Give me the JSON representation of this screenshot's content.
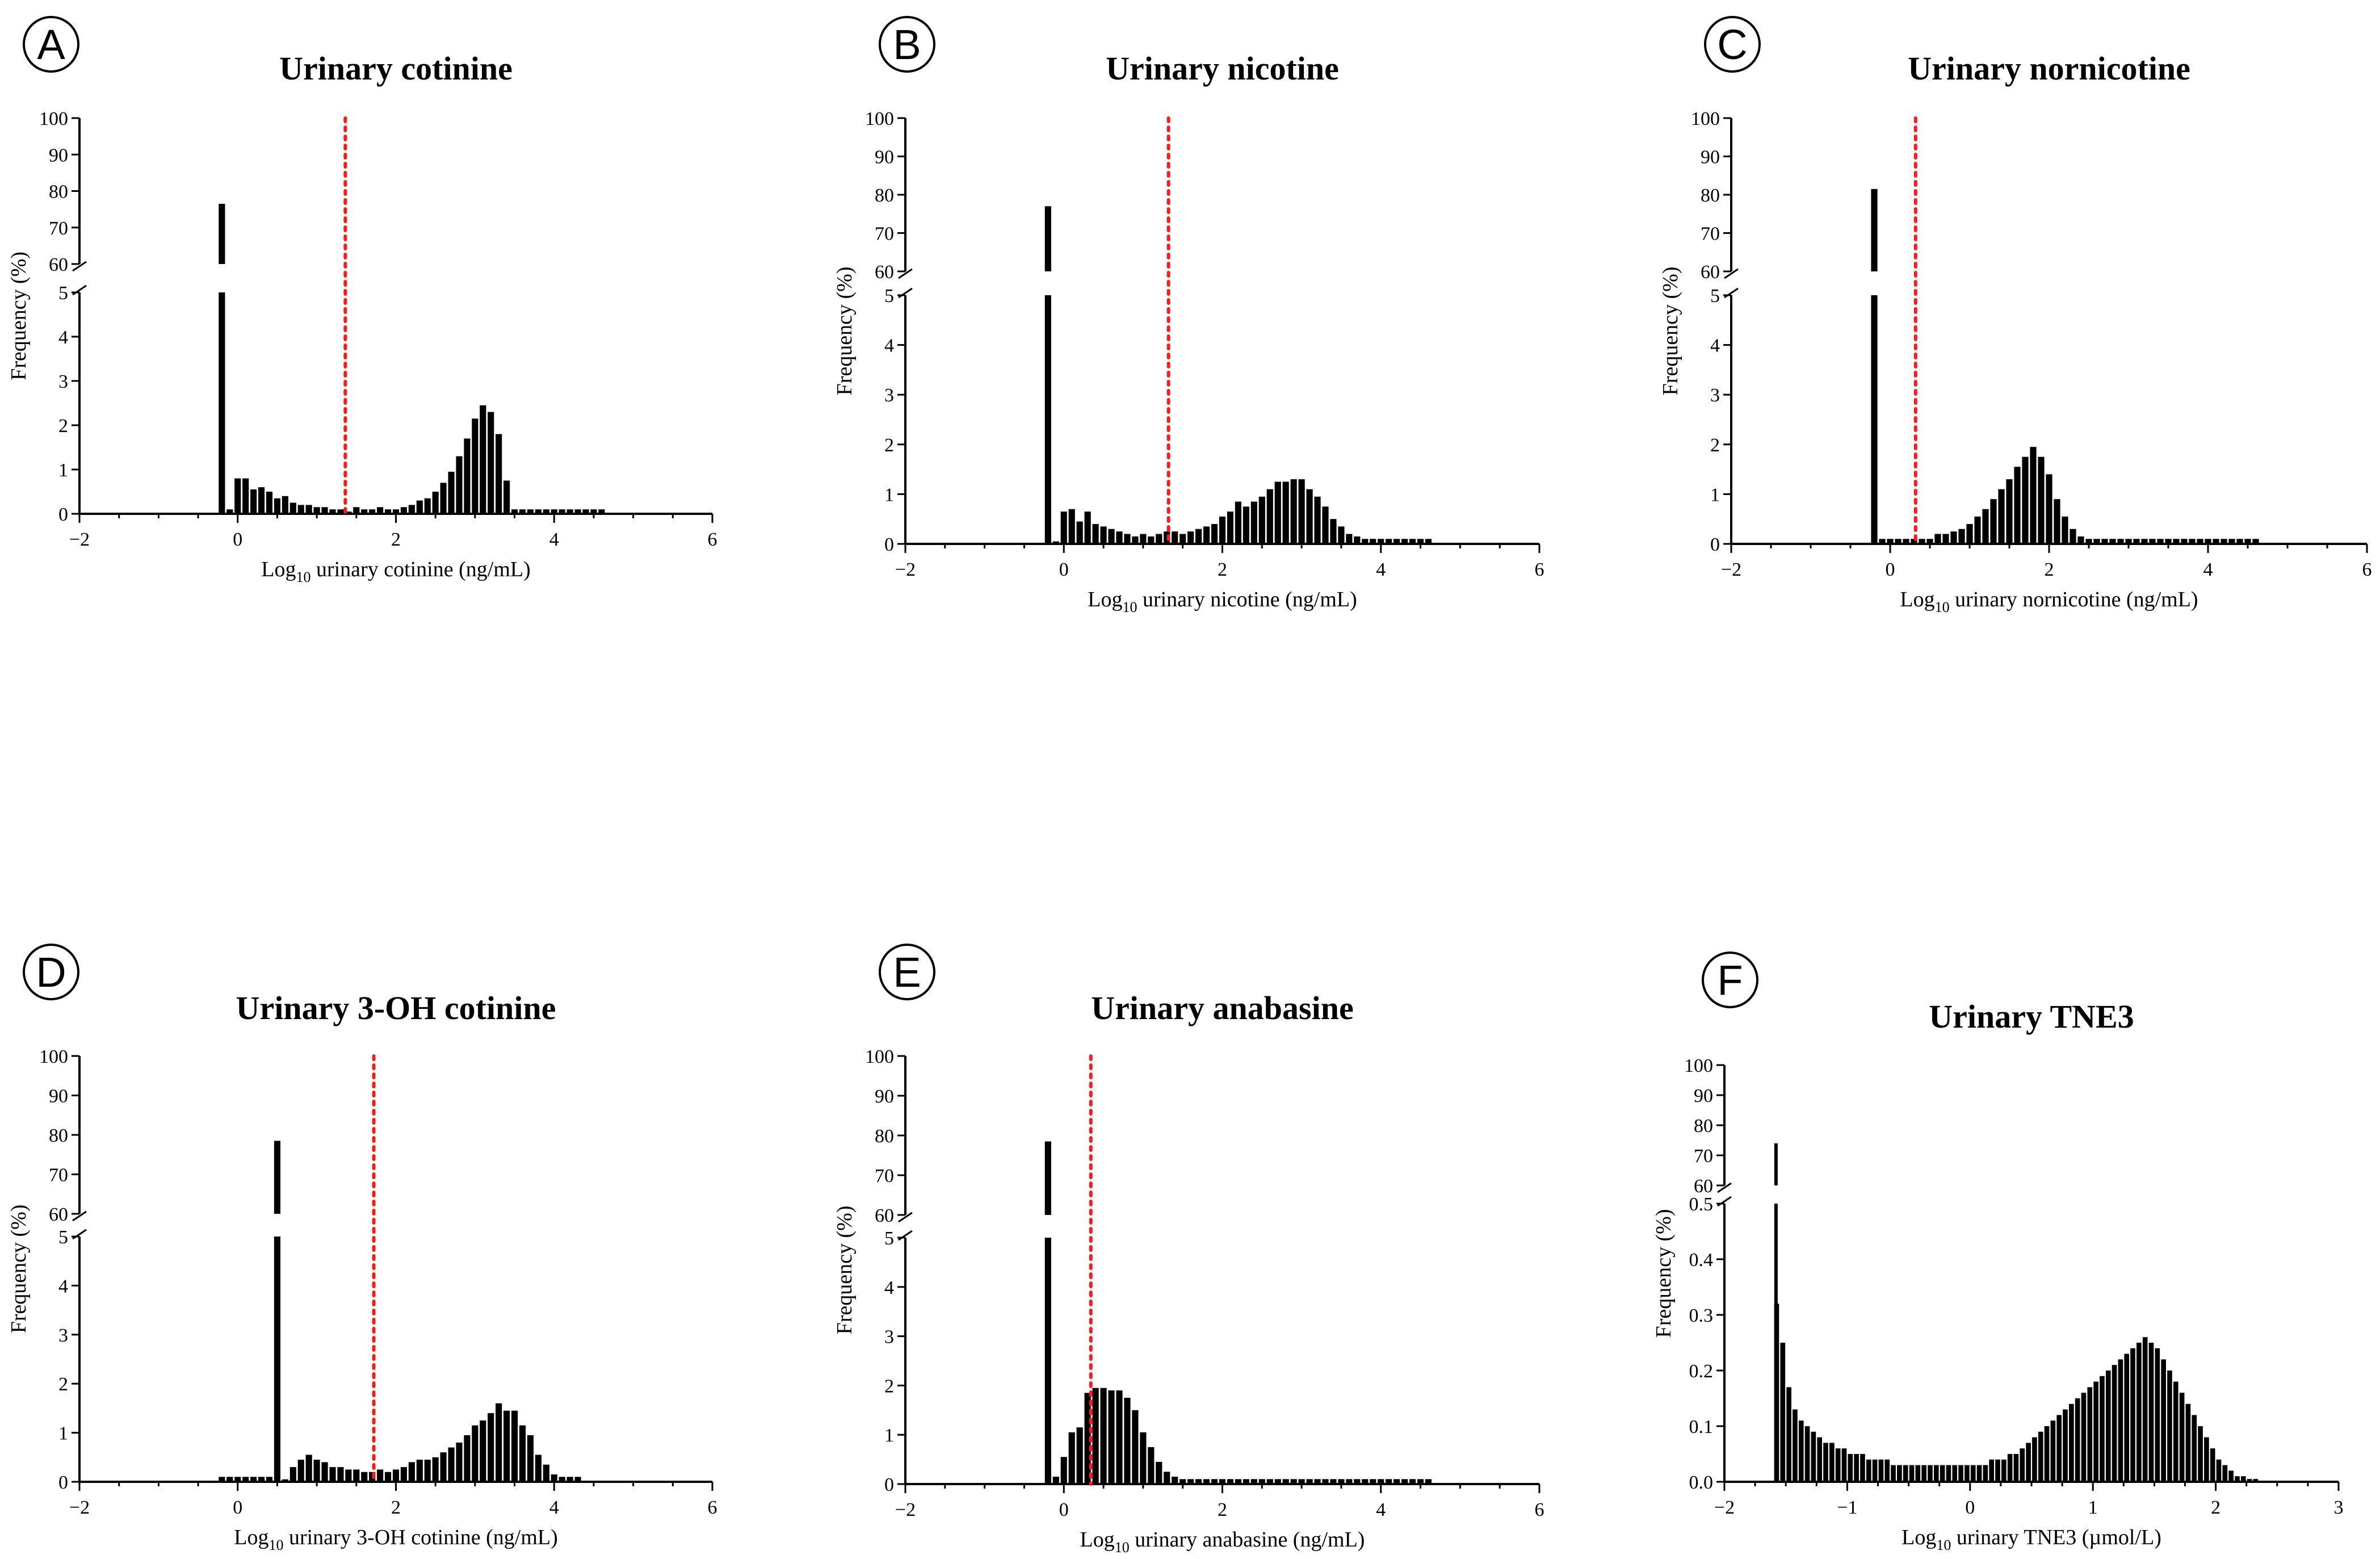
{
  "chart_data": [
    {
      "panel": "A",
      "type": "bar",
      "title": "Urinary cotinine",
      "xlabel": "Log10 urinary cotinine (ng/mL)",
      "xlabel_main": "Log",
      "xlabel_sub": "10",
      "xlabel_rest": " urinary cotinine (ng/mL)",
      "ylabel": "Frequency (%)",
      "xlim": [
        -2,
        6
      ],
      "xticks": [
        -2,
        0,
        2,
        4,
        6
      ],
      "y_lower": [
        0,
        5
      ],
      "y_lower_ticks": [
        0,
        1,
        2,
        3,
        4,
        5
      ],
      "y_upper": [
        60,
        100
      ],
      "y_upper_ticks": [
        60,
        70,
        80,
        90,
        100
      ],
      "bin_width": 0.1,
      "threshold_x": 1.36,
      "bars": {
        "x": [
          -0.2,
          -0.1,
          0.0,
          0.1,
          0.2,
          0.3,
          0.4,
          0.5,
          0.6,
          0.7,
          0.8,
          0.9,
          1.0,
          1.1,
          1.2,
          1.3,
          1.4,
          1.5,
          1.6,
          1.7,
          1.8,
          1.9,
          2.0,
          2.1,
          2.2,
          2.3,
          2.4,
          2.5,
          2.6,
          2.7,
          2.8,
          2.9,
          3.0,
          3.1,
          3.2,
          3.3,
          3.4,
          3.5,
          3.6,
          3.7,
          3.8,
          3.9,
          4.0,
          4.1,
          4.2,
          4.3,
          4.4,
          4.5,
          4.6
        ],
        "y": [
          76.5,
          0.1,
          0.8,
          0.8,
          0.55,
          0.6,
          0.5,
          0.35,
          0.4,
          0.25,
          0.2,
          0.2,
          0.15,
          0.15,
          0.1,
          0.1,
          0.05,
          0.15,
          0.1,
          0.1,
          0.15,
          0.1,
          0.1,
          0.15,
          0.2,
          0.3,
          0.35,
          0.5,
          0.7,
          0.95,
          1.3,
          1.7,
          2.15,
          2.45,
          2.3,
          1.8,
          0.75,
          0.1,
          0.1,
          0.1,
          0.1,
          0.1,
          0.1,
          0.1,
          0.1,
          0.1,
          0.1,
          0.1,
          0.1
        ]
      }
    },
    {
      "panel": "B",
      "type": "bar",
      "title": "Urinary nicotine",
      "xlabel": "Log10 urinary nicotine (ng/mL)",
      "xlabel_main": "Log",
      "xlabel_sub": "10",
      "xlabel_rest": " urinary nicotine (ng/mL)",
      "ylabel": "Frequency (%)",
      "xlim": [
        -2,
        6
      ],
      "xticks": [
        -2,
        0,
        2,
        4,
        6
      ],
      "y_lower": [
        0,
        5
      ],
      "y_lower_ticks": [
        0,
        1,
        2,
        3,
        4,
        5
      ],
      "y_upper": [
        60,
        100
      ],
      "y_upper_ticks": [
        60,
        70,
        80,
        90,
        100
      ],
      "bin_width": 0.1,
      "threshold_x": 1.32,
      "bars": {
        "x": [
          -0.2,
          -0.1,
          0.0,
          0.1,
          0.2,
          0.3,
          0.4,
          0.5,
          0.6,
          0.7,
          0.8,
          0.9,
          1.0,
          1.1,
          1.2,
          1.3,
          1.4,
          1.5,
          1.6,
          1.7,
          1.8,
          1.9,
          2.0,
          2.1,
          2.2,
          2.3,
          2.4,
          2.5,
          2.6,
          2.7,
          2.8,
          2.9,
          3.0,
          3.1,
          3.2,
          3.3,
          3.4,
          3.5,
          3.6,
          3.7,
          3.8,
          3.9,
          4.0,
          4.1,
          4.2,
          4.3,
          4.4,
          4.5,
          4.6
        ],
        "y": [
          77.0,
          0.05,
          0.65,
          0.7,
          0.45,
          0.65,
          0.4,
          0.35,
          0.3,
          0.25,
          0.2,
          0.15,
          0.2,
          0.15,
          0.2,
          0.25,
          0.25,
          0.2,
          0.25,
          0.3,
          0.35,
          0.4,
          0.55,
          0.65,
          0.85,
          0.75,
          0.85,
          0.95,
          1.1,
          1.25,
          1.25,
          1.3,
          1.3,
          1.1,
          0.95,
          0.75,
          0.5,
          0.35,
          0.2,
          0.15,
          0.1,
          0.1,
          0.1,
          0.1,
          0.1,
          0.1,
          0.1,
          0.1,
          0.1
        ]
      }
    },
    {
      "panel": "C",
      "type": "bar",
      "title": "Urinary nornicotine",
      "xlabel": "Log10 urinary nornicotine (ng/mL)",
      "xlabel_main": "Log",
      "xlabel_sub": "10",
      "xlabel_rest": " urinary nornicotine (ng/mL)",
      "ylabel": "Frequency (%)",
      "xlim": [
        -2,
        6
      ],
      "xticks": [
        -2,
        0,
        2,
        4,
        6
      ],
      "y_lower": [
        0,
        5
      ],
      "y_lower_ticks": [
        0,
        1,
        2,
        3,
        4,
        5
      ],
      "y_upper": [
        60,
        100
      ],
      "y_upper_ticks": [
        60,
        70,
        80,
        90,
        100
      ],
      "bin_width": 0.1,
      "threshold_x": 0.32,
      "bars": {
        "x": [
          -0.2,
          -0.1,
          0.0,
          0.1,
          0.2,
          0.3,
          0.4,
          0.5,
          0.6,
          0.7,
          0.8,
          0.9,
          1.0,
          1.1,
          1.2,
          1.3,
          1.4,
          1.5,
          1.6,
          1.7,
          1.8,
          1.9,
          2.0,
          2.1,
          2.2,
          2.3,
          2.4,
          2.5,
          2.6,
          2.7,
          2.8,
          2.9,
          3.0,
          3.1,
          3.2,
          3.3,
          3.4,
          3.5,
          3.6,
          3.7,
          3.8,
          3.9,
          4.0,
          4.1,
          4.2,
          4.3,
          4.4,
          4.5,
          4.6
        ],
        "y": [
          81.5,
          0.1,
          0.1,
          0.1,
          0.1,
          0.1,
          0.1,
          0.1,
          0.2,
          0.2,
          0.25,
          0.3,
          0.4,
          0.55,
          0.7,
          0.9,
          1.1,
          1.3,
          1.55,
          1.75,
          1.95,
          1.75,
          1.4,
          0.9,
          0.55,
          0.3,
          0.15,
          0.1,
          0.1,
          0.1,
          0.1,
          0.1,
          0.1,
          0.1,
          0.1,
          0.1,
          0.1,
          0.1,
          0.1,
          0.1,
          0.1,
          0.1,
          0.1,
          0.1,
          0.1,
          0.1,
          0.1,
          0.1,
          0.1
        ]
      }
    },
    {
      "panel": "D",
      "type": "bar",
      "title": "Urinary 3-OH cotinine",
      "xlabel": "Log10 urinary 3-OH cotinine (ng/mL)",
      "xlabel_main": "Log",
      "xlabel_sub": "10",
      "xlabel_rest": " urinary 3-OH cotinine (ng/mL)",
      "ylabel": "Frequency (%)",
      "xlim": [
        -2,
        6
      ],
      "xticks": [
        -2,
        0,
        2,
        4,
        6
      ],
      "y_lower": [
        0,
        5
      ],
      "y_lower_ticks": [
        0,
        1,
        2,
        3,
        4,
        5
      ],
      "y_upper": [
        60,
        100
      ],
      "y_upper_ticks": [
        60,
        70,
        80,
        90,
        100
      ],
      "bin_width": 0.1,
      "threshold_x": 1.72,
      "bars": {
        "x": [
          -0.2,
          -0.1,
          0.0,
          0.1,
          0.2,
          0.3,
          0.4,
          0.5,
          0.6,
          0.7,
          0.8,
          0.9,
          1.0,
          1.1,
          1.2,
          1.3,
          1.4,
          1.5,
          1.6,
          1.7,
          1.8,
          1.9,
          2.0,
          2.1,
          2.2,
          2.3,
          2.4,
          2.5,
          2.6,
          2.7,
          2.8,
          2.9,
          3.0,
          3.1,
          3.2,
          3.3,
          3.4,
          3.5,
          3.6,
          3.7,
          3.8,
          3.9,
          4.0,
          4.1,
          4.2,
          4.3
        ],
        "y": [
          0.1,
          0.1,
          0.1,
          0.1,
          0.1,
          0.1,
          0.1,
          78.5,
          0.05,
          0.3,
          0.45,
          0.55,
          0.45,
          0.4,
          0.3,
          0.3,
          0.25,
          0.25,
          0.2,
          0.2,
          0.25,
          0.2,
          0.25,
          0.3,
          0.4,
          0.45,
          0.45,
          0.5,
          0.6,
          0.7,
          0.8,
          0.95,
          1.15,
          1.25,
          1.4,
          1.6,
          1.45,
          1.45,
          1.15,
          0.95,
          0.55,
          0.35,
          0.15,
          0.1,
          0.1,
          0.1
        ]
      }
    },
    {
      "panel": "E",
      "type": "bar",
      "title": "Urinary anabasine",
      "xlabel": "Log10 urinary anabasine (ng/mL)",
      "xlabel_main": "Log",
      "xlabel_sub": "10",
      "xlabel_rest": " urinary anabasine (ng/mL)",
      "ylabel": "Frequency (%)",
      "xlim": [
        -2,
        6
      ],
      "xticks": [
        -2,
        0,
        2,
        4,
        6
      ],
      "y_lower": [
        0,
        5
      ],
      "y_lower_ticks": [
        0,
        1,
        2,
        3,
        4,
        5
      ],
      "y_upper": [
        60,
        100
      ],
      "y_upper_ticks": [
        60,
        70,
        80,
        90,
        100
      ],
      "bin_width": 0.1,
      "threshold_x": 0.34,
      "bars": {
        "x": [
          -0.2,
          -0.1,
          0.0,
          0.1,
          0.2,
          0.3,
          0.4,
          0.5,
          0.6,
          0.7,
          0.8,
          0.9,
          1.0,
          1.1,
          1.2,
          1.3,
          1.4,
          1.5,
          1.6,
          1.7,
          1.8,
          1.9,
          2.0,
          2.1,
          2.2,
          2.3,
          2.4,
          2.5,
          2.6,
          2.7,
          2.8,
          2.9,
          3.0,
          3.1,
          3.2,
          3.3,
          3.4,
          3.5,
          3.6,
          3.7,
          3.8,
          3.9,
          4.0,
          4.1,
          4.2,
          4.3,
          4.4,
          4.5,
          4.6
        ],
        "y": [
          78.5,
          0.15,
          0.55,
          1.05,
          1.15,
          1.85,
          1.95,
          1.95,
          1.9,
          1.9,
          1.75,
          1.5,
          1.05,
          0.75,
          0.45,
          0.25,
          0.15,
          0.1,
          0.1,
          0.1,
          0.1,
          0.1,
          0.1,
          0.1,
          0.1,
          0.1,
          0.1,
          0.1,
          0.1,
          0.1,
          0.1,
          0.1,
          0.1,
          0.1,
          0.1,
          0.1,
          0.1,
          0.1,
          0.1,
          0.1,
          0.1,
          0.1,
          0.1,
          0.1,
          0.1,
          0.1,
          0.1,
          0.1,
          0.1
        ]
      }
    },
    {
      "panel": "F",
      "type": "bar",
      "title": "Urinary TNE3",
      "xlabel": "Log10 urinary TNE3 (µmol/L)",
      "xlabel_main": "Log",
      "xlabel_sub": "10",
      "xlabel_rest": " urinary TNE3 (µmol/L)",
      "ylabel": "Frequency (%)",
      "xlim": [
        -2,
        3
      ],
      "xticks": [
        -2,
        -1,
        0,
        1,
        2,
        3
      ],
      "y_lower": [
        0,
        0.5
      ],
      "y_lower_ticks": [
        0.0,
        0.1,
        0.2,
        0.3,
        0.4,
        0.5
      ],
      "y_upper": [
        60,
        100
      ],
      "y_upper_ticks": [
        60,
        70,
        80,
        90,
        100
      ],
      "bin_width": 0.05,
      "threshold_x": null,
      "bars": {
        "x": [
          -1.575,
          -1.525,
          -1.475,
          -1.425,
          -1.375,
          -1.325,
          -1.275,
          -1.225,
          -1.175,
          -1.125,
          -1.075,
          -1.025,
          -0.975,
          -0.925,
          -0.875,
          -0.825,
          -0.775,
          -0.725,
          -0.675,
          -0.625,
          -0.575,
          -0.525,
          -0.475,
          -0.425,
          -0.375,
          -0.325,
          -0.275,
          -0.225,
          -0.175,
          -0.125,
          -0.075,
          -0.025,
          0.025,
          0.075,
          0.125,
          0.175,
          0.225,
          0.275,
          0.325,
          0.375,
          0.425,
          0.475,
          0.525,
          0.575,
          0.625,
          0.675,
          0.725,
          0.775,
          0.825,
          0.875,
          0.925,
          0.975,
          1.025,
          1.075,
          1.125,
          1.175,
          1.225,
          1.275,
          1.325,
          1.375,
          1.425,
          1.475,
          1.525,
          1.575,
          1.625,
          1.675,
          1.725,
          1.775,
          1.825,
          1.875,
          1.925,
          1.975,
          2.025,
          2.075,
          2.125,
          2.175,
          2.225,
          2.275,
          2.325
        ],
        "y": [
          0.32,
          0.25,
          0.17,
          0.13,
          0.11,
          0.1,
          0.09,
          0.08,
          0.07,
          0.07,
          0.06,
          0.06,
          0.05,
          0.05,
          0.05,
          0.04,
          0.04,
          0.04,
          0.04,
          0.03,
          0.03,
          0.03,
          0.03,
          0.03,
          0.03,
          0.03,
          0.03,
          0.03,
          0.03,
          0.03,
          0.03,
          0.03,
          0.03,
          0.03,
          0.03,
          0.04,
          0.04,
          0.04,
          0.05,
          0.05,
          0.06,
          0.07,
          0.08,
          0.09,
          0.1,
          0.11,
          0.12,
          0.13,
          0.14,
          0.15,
          0.16,
          0.17,
          0.18,
          0.19,
          0.2,
          0.21,
          0.22,
          0.23,
          0.24,
          0.25,
          0.26,
          0.25,
          0.24,
          0.22,
          0.2,
          0.18,
          0.16,
          0.14,
          0.12,
          0.1,
          0.08,
          0.06,
          0.04,
          0.03,
          0.02,
          0.01,
          0.01,
          0.005,
          0.005
        ]
      },
      "spike": {
        "x": -1.58,
        "y": 74
      }
    }
  ]
}
